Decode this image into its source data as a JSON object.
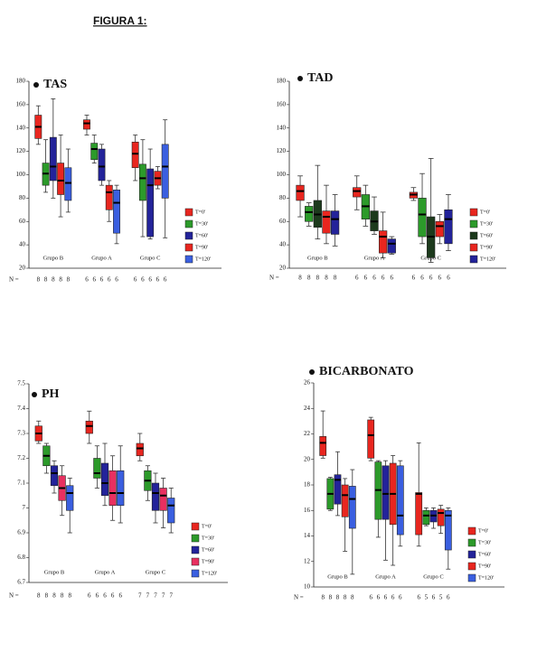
{
  "heading": "FIGURA 1:",
  "chart_data": [
    {
      "type": "box",
      "title": "TAS",
      "ylim": [
        20,
        180
      ],
      "yticks": [
        20,
        40,
        60,
        80,
        100,
        120,
        140,
        160,
        180
      ],
      "groups": [
        "Grupo B",
        "Grupo A",
        "Grupo C"
      ],
      "n_label": "N =",
      "n": [
        [
          8,
          8,
          8,
          8,
          8
        ],
        [
          6,
          6,
          6,
          6,
          6
        ],
        [
          6,
          6,
          6,
          6,
          6
        ]
      ],
      "series": [
        {
          "name": "T=0'",
          "color": "#e8261f",
          "values": [
            [
              126,
              131,
              141,
              151,
              159
            ],
            [
              134,
              139,
              144,
              147,
              151
            ],
            [
              95,
              106,
              118,
              128,
              134
            ]
          ]
        },
        {
          "name": "T=30'",
          "color": "#2c9a2a",
          "values": [
            [
              85,
              91,
              101,
              110,
              130
            ],
            [
              110,
              113,
              122,
              127,
              134
            ],
            [
              47,
              78,
              97,
              109,
              130
            ]
          ]
        },
        {
          "name": "T=60'",
          "color": "#23239a",
          "values": [
            [
              80,
              95,
              107,
              132,
              165
            ],
            [
              91,
              95,
              107,
              122,
              126
            ],
            [
              45,
              47,
              91,
              105,
              122
            ]
          ]
        },
        {
          "name": "T=90'",
          "color": "#e8261f",
          "values": [
            [
              64,
              83,
              95,
              110,
              134
            ],
            [
              60,
              70,
              85,
              91,
              95
            ],
            [
              88,
              91,
              97,
              103,
              107
            ]
          ]
        },
        {
          "name": "T=120'",
          "color": "#3a5fe0",
          "values": [
            [
              68,
              78,
              93,
              106,
              122
            ],
            [
              41,
              50,
              76,
              87,
              91
            ],
            [
              46,
              80,
              107,
              126,
              147
            ]
          ]
        }
      ]
    },
    {
      "type": "box",
      "title": "TAD",
      "ylim": [
        20,
        180
      ],
      "yticks": [
        20,
        40,
        60,
        80,
        100,
        120,
        140,
        160,
        180
      ],
      "groups": [
        "Grupo B",
        "Grupo A",
        "Grupo C"
      ],
      "n_label": "N =",
      "n": [
        [
          8,
          8,
          8,
          8,
          8
        ],
        [
          6,
          6,
          6,
          6,
          6
        ],
        [
          6,
          6,
          6,
          6,
          6
        ]
      ],
      "series": [
        {
          "name": "T=0'",
          "color": "#e8261f",
          "values": [
            [
              64,
              78,
              86,
              91,
              99
            ],
            [
              70,
              81,
              86,
              89,
              99
            ],
            [
              78,
              80,
              83,
              85,
              89
            ]
          ]
        },
        {
          "name": "T=30'",
          "color": "#2c9a2a",
          "values": [
            [
              56,
              60,
              68,
              73,
              76
            ],
            [
              56,
              62,
              73,
              83,
              91
            ],
            [
              41,
              47,
              66,
              80,
              101
            ]
          ]
        },
        {
          "name": "T=60'",
          "color": "#1c3a1c",
          "values": [
            [
              45,
              55,
              66,
              78,
              108
            ],
            [
              49,
              52,
              60,
              69,
              81
            ],
            [
              25,
              29,
              47,
              64,
              114
            ]
          ]
        },
        {
          "name": "T=90'",
          "color": "#e8261f",
          "values": [
            [
              41,
              50,
              64,
              69,
              91
            ],
            [
              29,
              33,
              47,
              52,
              68
            ],
            [
              41,
              47,
              56,
              60,
              66
            ]
          ]
        },
        {
          "name": "T=120'",
          "color": "#23239a",
          "values": [
            [
              39,
              49,
              62,
              69,
              83
            ],
            [
              32,
              33,
              41,
              45,
              47
            ],
            [
              35,
              41,
              62,
              70,
              83
            ]
          ]
        }
      ]
    },
    {
      "type": "box",
      "title": "PH",
      "ylim": [
        6.7,
        7.5
      ],
      "yticks": [
        6.7,
        6.8,
        6.9,
        7.0,
        7.1,
        7.2,
        7.3,
        7.4,
        7.5
      ],
      "groups": [
        "Grupo B",
        "Grupo A",
        "Grupo C"
      ],
      "n_label": "N =",
      "n": [
        [
          8,
          8,
          8,
          8,
          8
        ],
        [
          6,
          6,
          6,
          6,
          6
        ],
        [
          7,
          7,
          7,
          7,
          7
        ]
      ],
      "series": [
        {
          "name": "T=0'",
          "color": "#e8261f",
          "values": [
            [
              7.26,
              7.27,
              7.3,
              7.33,
              7.35
            ],
            [
              7.26,
              7.3,
              7.33,
              7.35,
              7.39
            ],
            [
              7.19,
              7.21,
              7.24,
              7.26,
              7.3
            ]
          ]
        },
        {
          "name": "T=30'",
          "color": "#2c9a2a",
          "values": [
            [
              7.14,
              7.17,
              7.21,
              7.25,
              7.26
            ],
            [
              7.08,
              7.12,
              7.14,
              7.2,
              7.25
            ],
            [
              7.03,
              7.07,
              7.11,
              7.15,
              7.17
            ]
          ]
        },
        {
          "name": "T=60'",
          "color": "#23239a",
          "values": [
            [
              7.06,
              7.09,
              7.14,
              7.17,
              7.19
            ],
            [
              7.01,
              7.05,
              7.1,
              7.18,
              7.26
            ],
            [
              6.94,
              6.99,
              7.06,
              7.1,
              7.14
            ]
          ]
        },
        {
          "name": "T=90'",
          "color": "#e83060",
          "values": [
            [
              6.97,
              7.03,
              7.08,
              7.13,
              7.17
            ],
            [
              6.95,
              7.01,
              7.06,
              7.15,
              7.21
            ],
            [
              6.92,
              6.99,
              7.05,
              7.08,
              7.12
            ]
          ]
        },
        {
          "name": "T=120'",
          "color": "#3a5fe0",
          "values": [
            [
              6.9,
              6.99,
              7.06,
              7.09,
              7.12
            ],
            [
              6.94,
              7.01,
              7.06,
              7.15,
              7.25
            ],
            [
              6.9,
              6.94,
              7.01,
              7.04,
              7.08
            ]
          ]
        }
      ]
    },
    {
      "type": "box",
      "title": "BICARBONATO",
      "ylim": [
        10,
        26
      ],
      "yticks": [
        10,
        12,
        14,
        16,
        18,
        20,
        22,
        24,
        26
      ],
      "groups": [
        "Grupo B",
        "Grupo A",
        "Grupo C"
      ],
      "n_label": "N =",
      "n": [
        [
          8,
          8,
          8,
          8,
          8
        ],
        [
          6,
          6,
          6,
          6,
          6
        ],
        [
          6,
          5,
          6,
          5,
          6
        ]
      ],
      "series": [
        {
          "name": "T=0'",
          "color": "#e8261f",
          "values": [
            [
              20.1,
              20.3,
              21.3,
              21.8,
              23.8
            ],
            [
              19.9,
              20.1,
              21.9,
              23.1,
              23.3
            ],
            [
              13.2,
              14.1,
              17.3,
              17.4,
              21.3
            ]
          ]
        },
        {
          "name": "T=30'",
          "color": "#2c9a2a",
          "values": [
            [
              16.0,
              16.1,
              17.3,
              18.5,
              18.6
            ],
            [
              13.9,
              15.3,
              17.6,
              19.8,
              19.9
            ],
            [
              14.8,
              14.9,
              15.6,
              16.0,
              16.2
            ]
          ]
        },
        {
          "name": "T=60'",
          "color": "#23239a",
          "values": [
            [
              15.6,
              16.5,
              18.4,
              18.8,
              20.6
            ],
            [
              12.1,
              15.3,
              17.3,
              19.5,
              19.9
            ],
            [
              14.6,
              15.1,
              15.6,
              16.0,
              16.2
            ]
          ]
        },
        {
          "name": "T=90'",
          "color": "#e8261f",
          "values": [
            [
              12.8,
              15.5,
              17.2,
              18.0,
              18.5
            ],
            [
              11.7,
              14.9,
              17.3,
              19.7,
              20.3
            ],
            [
              14.2,
              14.8,
              15.8,
              16.1,
              16.4
            ]
          ]
        },
        {
          "name": "T=120'",
          "color": "#3a5fe0",
          "values": [
            [
              11.0,
              14.6,
              16.9,
              17.9,
              19.2
            ],
            [
              13.2,
              14.1,
              15.6,
              19.5,
              19.9
            ],
            [
              11.4,
              12.9,
              15.6,
              16.0,
              16.2
            ]
          ]
        }
      ]
    }
  ]
}
